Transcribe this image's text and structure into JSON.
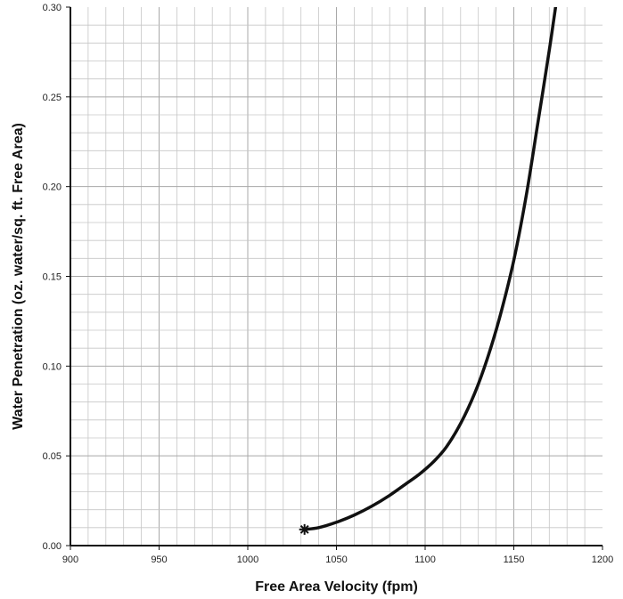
{
  "chart_data": {
    "type": "line",
    "title": "",
    "xlabel": "Free Area Velocity (fpm)",
    "ylabel": "Water Penetration (oz. water/sq. ft. Free Area)",
    "xlim": [
      900,
      1200
    ],
    "ylim": [
      0.0,
      0.3
    ],
    "x_ticks": [
      900,
      950,
      1000,
      1050,
      1100,
      1150,
      1200
    ],
    "x_tick_labels": [
      "900",
      "950",
      "1000",
      "1050",
      "1100",
      "1150",
      "1200"
    ],
    "y_ticks": [
      0.0,
      0.05,
      0.1,
      0.15,
      0.2,
      0.25,
      0.3
    ],
    "y_tick_labels": [
      "0.00",
      "0.05",
      "0.10",
      "0.15",
      "0.20",
      "0.25",
      "0.30"
    ],
    "grid": true,
    "x_minor_step": 10,
    "y_minor_step": 0.01,
    "marker": {
      "x": 1032,
      "y": 0.009,
      "symbol": "asterisk"
    },
    "series": [
      {
        "color": "#111111",
        "x": [
          1032,
          1040,
          1050,
          1060,
          1070,
          1080,
          1090,
          1097,
          1105,
          1112,
          1120,
          1128,
          1135,
          1142,
          1150,
          1157,
          1163,
          1170,
          1175
        ],
        "y": [
          0.009,
          0.01,
          0.013,
          0.017,
          0.022,
          0.028,
          0.035,
          0.04,
          0.047,
          0.055,
          0.068,
          0.085,
          0.104,
          0.127,
          0.159,
          0.195,
          0.232,
          0.276,
          0.31
        ]
      }
    ]
  }
}
